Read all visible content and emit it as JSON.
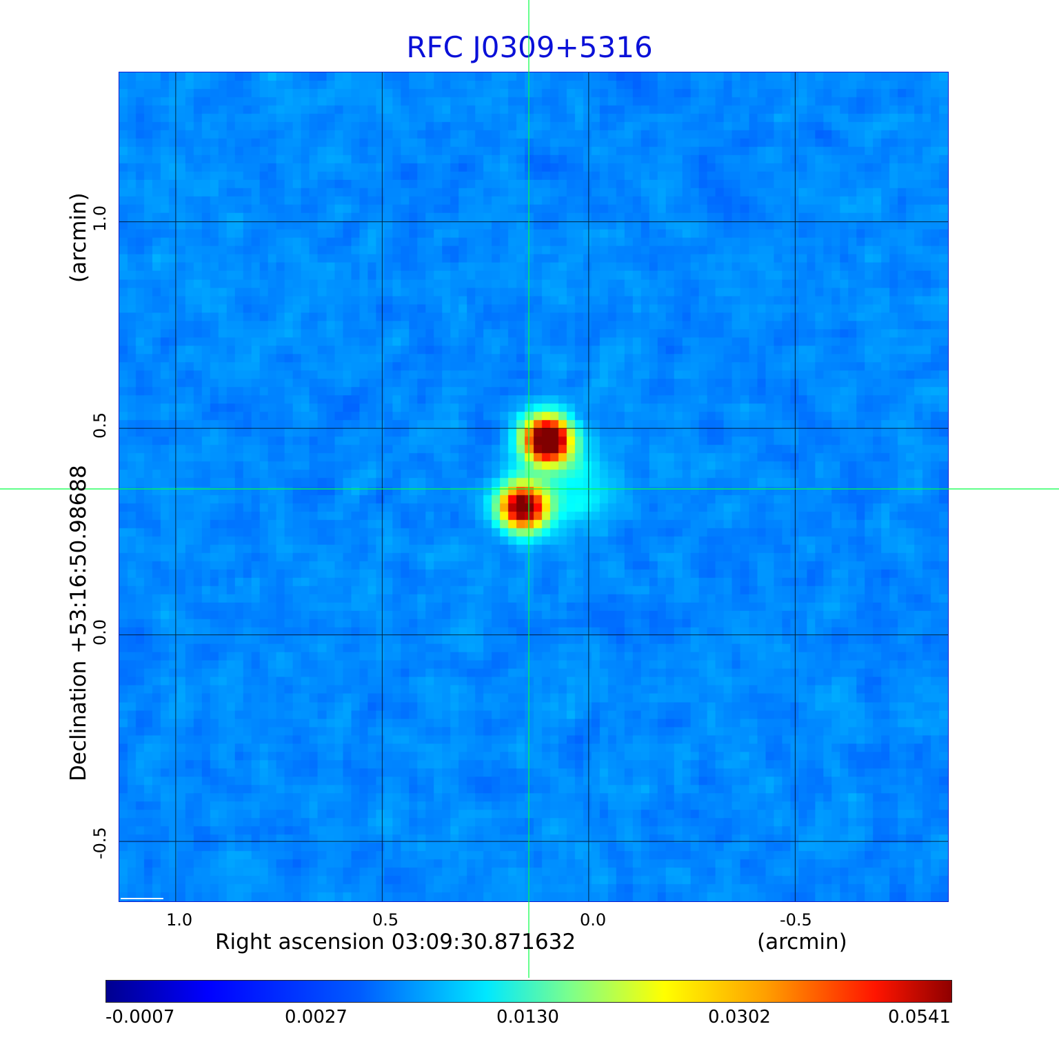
{
  "title": "RFC J0309+5316",
  "axes": {
    "x_label": "Right ascension  03:09:30.871632",
    "x_unit": "(arcmin)",
    "y_label": "Declination  +53:16:50.98688",
    "y_unit": "(arcmin)",
    "x_ticks": [
      "1.0",
      "0.5",
      "0.0",
      "-0.5"
    ],
    "y_ticks": [
      "1.0",
      "0.5",
      "0.0",
      "-0.5"
    ]
  },
  "colorbar": {
    "labels": [
      "-0.0007",
      "0.0027",
      "0.0130",
      "0.0302",
      "0.0541"
    ],
    "colormap": "jet"
  },
  "colors": {
    "title": "#0a10d8",
    "crosshair": "#00ff44",
    "grid": "#000000",
    "background_map": "#1a46f0"
  },
  "sources": [
    {
      "ra_offset_arcmin": 0.1,
      "dec_offset_arcmin": 0.47,
      "intensity": "peak"
    },
    {
      "ra_offset_arcmin": 0.16,
      "dec_offset_arcmin": 0.31,
      "intensity": "secondary"
    }
  ]
}
